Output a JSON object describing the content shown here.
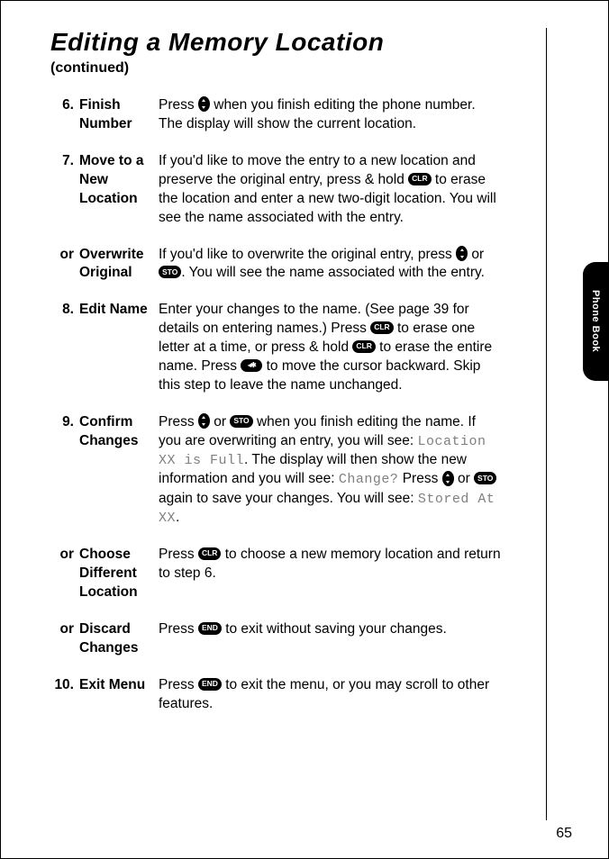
{
  "title": "Editing a Memory Location",
  "subtitle": "(continued)",
  "sideTab": "Phone Book",
  "pageNumber": "65",
  "steps": [
    {
      "num": "6.",
      "label": "Finish Number",
      "parts": [
        {
          "t": "text",
          "v": "Press "
        },
        {
          "t": "oval"
        },
        {
          "t": "text",
          "v": " when you finish editing the phone number. The display will show the current location."
        }
      ]
    },
    {
      "num": "7.",
      "label": "Move to a New Location",
      "parts": [
        {
          "t": "text",
          "v": "If you'd like to move the entry to a new location and preserve the original entry, press & hold "
        },
        {
          "t": "key",
          "v": "CLR"
        },
        {
          "t": "text",
          "v": " to erase the location and enter a new two-digit location. You will see the name associated with the entry."
        }
      ]
    },
    {
      "num": "or",
      "label": "Overwrite Original",
      "parts": [
        {
          "t": "text",
          "v": "If you'd like to overwrite the original entry, press "
        },
        {
          "t": "oval"
        },
        {
          "t": "text",
          "v": " or "
        },
        {
          "t": "key",
          "v": "STO"
        },
        {
          "t": "text",
          "v": ". You will see the name associated with the entry."
        }
      ]
    },
    {
      "num": "8.",
      "label": "Edit Name",
      "parts": [
        {
          "t": "text",
          "v": "Enter your changes to the name. (See page 39 for details on entering names.) Press "
        },
        {
          "t": "key",
          "v": "CLR"
        },
        {
          "t": "text",
          "v": " to erase one letter at a time, or press & hold "
        },
        {
          "t": "key",
          "v": "CLR"
        },
        {
          "t": "text",
          "v": " to erase the entire name. Press "
        },
        {
          "t": "star"
        },
        {
          "t": "text",
          "v": " to move the cursor backward. Skip this step to leave the name unchanged."
        }
      ]
    },
    {
      "num": "9.",
      "label": "Confirm Changes",
      "parts": [
        {
          "t": "text",
          "v": "Press "
        },
        {
          "t": "oval"
        },
        {
          "t": "text",
          "v": " or "
        },
        {
          "t": "key",
          "v": "STO"
        },
        {
          "t": "text",
          "v": " when you finish editing the name. If you are overwriting an entry, you will see: "
        },
        {
          "t": "lcd",
          "v": "Location XX is Full"
        },
        {
          "t": "text",
          "v": ". The display will then show the new information and you will see: "
        },
        {
          "t": "lcd",
          "v": "Change?"
        },
        {
          "t": "text",
          "v": "  Press "
        },
        {
          "t": "oval"
        },
        {
          "t": "text",
          "v": " or "
        },
        {
          "t": "key",
          "v": "STO"
        },
        {
          "t": "text",
          "v": " again to save your changes. You will see: "
        },
        {
          "t": "lcd",
          "v": "Stored At XX"
        },
        {
          "t": "text",
          "v": "."
        }
      ]
    },
    {
      "num": "or",
      "label": "Choose Different Location",
      "parts": [
        {
          "t": "text",
          "v": "Press "
        },
        {
          "t": "key",
          "v": "CLR"
        },
        {
          "t": "text",
          "v": " to choose a new memory location and return to step 6."
        }
      ]
    },
    {
      "num": "or",
      "label": "Discard Changes",
      "parts": [
        {
          "t": "text",
          "v": "Press "
        },
        {
          "t": "key",
          "v": "END"
        },
        {
          "t": "text",
          "v": " to exit without saving your changes."
        }
      ]
    },
    {
      "num": "10.",
      "label": "Exit Menu",
      "parts": [
        {
          "t": "text",
          "v": "Press "
        },
        {
          "t": "key",
          "v": "END"
        },
        {
          "t": "text",
          "v": " to exit the menu, or you may scroll to other features."
        }
      ]
    }
  ]
}
